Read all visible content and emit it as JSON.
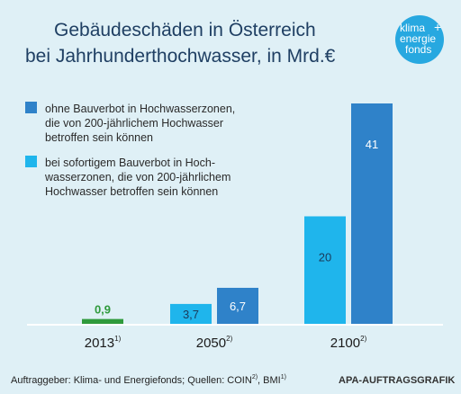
{
  "chart_data": {
    "type": "bar",
    "title_lines": [
      "Gebäudeschäden in Österreich",
      "bei Jahrhunderthochwasser, in Mrd.€"
    ],
    "categories": [
      {
        "label": "2013",
        "sup": "1)"
      },
      {
        "label": "2050",
        "sup": "2)"
      },
      {
        "label": "2100",
        "sup": "2)"
      }
    ],
    "series": [
      {
        "legend_lines": [
          "bei sofortigem Bauverbot in Hoch-",
          "wasserzonen, die von 200-jährlichem",
          "Hochwasser betroffen sein können"
        ],
        "color": "#1fb5ec",
        "values": [
          null,
          3.7,
          20
        ],
        "labels": [
          "",
          "3,7",
          "20"
        ]
      },
      {
        "legend_lines": [
          "ohne Bauverbot in Hochwasserzonen,",
          "die von 200-jährlichem Hochwasser",
          "betroffen sein können"
        ],
        "color": "#2f82c9",
        "values": [
          null,
          6.7,
          41
        ],
        "labels": [
          "",
          "6,7",
          "41"
        ]
      },
      {
        "legend_lines": [],
        "color": "#2f9a3c",
        "values": [
          0.9,
          null,
          null
        ],
        "labels": [
          "0,9",
          "",
          ""
        ]
      }
    ],
    "ylim": [
      0,
      41
    ],
    "grid": false
  },
  "footer": {
    "left_parts": [
      {
        "text": "Auftraggeber: Klima- und Energiefonds; Quellen: COIN",
        "sup": false
      },
      {
        "text": "2)",
        "sup": true
      },
      {
        "text": ", BMI",
        "sup": false
      },
      {
        "text": "1)",
        "sup": true
      }
    ],
    "right": "APA-AUFTRAGSGRAFIK"
  },
  "logo": {
    "lines": [
      "klima",
      "energie",
      "fonds"
    ],
    "plus": "+",
    "color": "#27a8e0"
  }
}
